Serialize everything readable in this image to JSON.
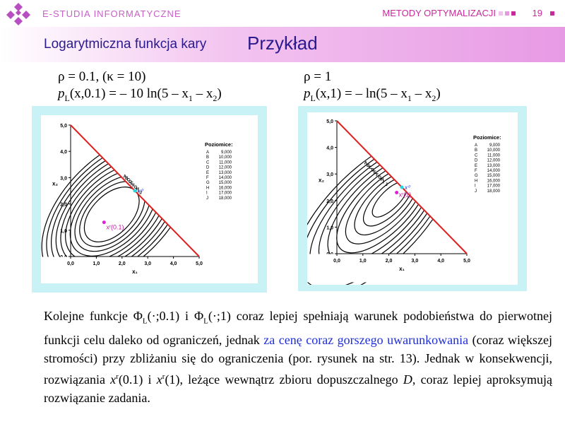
{
  "header": {
    "brand": "E-STUDIA INFORMATYCZNE",
    "course": "METODY OPTYMALIZACJI",
    "page": "19",
    "accent": "#c82a9c"
  },
  "title": {
    "left": "Logarytmiczna funkcja kary",
    "right": "Przykład"
  },
  "left_formula": {
    "line1": "ρ = 0.1, (κ = 10)",
    "line2_p": "p",
    "line2_sub": "L",
    "line2_args": "(x,0.1) = – 10 ln(5 – x",
    "line2_mid": " – x",
    "line2_end": ")"
  },
  "right_formula": {
    "line1": "ρ = 1",
    "line2_p": "p",
    "line2_sub": "L",
    "line2_args": "(x,1) = – ln(5 – x",
    "line2_mid": " – x",
    "line2_end": ")"
  },
  "chart_data": [
    {
      "type": "contour",
      "xlabel": "x₁",
      "ylabel": "x₂",
      "xlim": [
        0,
        5
      ],
      "ylim": [
        0,
        5
      ],
      "xticks": [
        "0,0",
        "1,0",
        "2,0",
        "3,0",
        "4,0",
        "5,0"
      ],
      "yticks": [
        "0,0",
        "1,0",
        "2,0",
        "3,0",
        "4,0",
        "5,0"
      ],
      "constraint": "x1 + x2 = 5",
      "x0_label": "x⁰",
      "x0_point": [
        2.5,
        2.5
      ],
      "xr_label": "xʳ(0.1)",
      "xr_point": [
        1.3,
        1.3
      ],
      "legend_title": "Poziomice:",
      "levels": [
        {
          "id": "A",
          "value": "9,000"
        },
        {
          "id": "B",
          "value": "10,000"
        },
        {
          "id": "C",
          "value": "11,000"
        },
        {
          "id": "D",
          "value": "12,000"
        },
        {
          "id": "E",
          "value": "13,000"
        },
        {
          "id": "F",
          "value": "14,000"
        },
        {
          "id": "G",
          "value": "15,000"
        },
        {
          "id": "H",
          "value": "16,000"
        },
        {
          "id": "I",
          "value": "17,000"
        },
        {
          "id": "J",
          "value": "18,000"
        }
      ]
    },
    {
      "type": "contour",
      "xlabel": "x₁",
      "ylabel": "x₂",
      "xlim": [
        0,
        5
      ],
      "ylim": [
        0,
        5
      ],
      "xticks": [
        "0,0",
        "1,0",
        "2,0",
        "3,0",
        "4,0",
        "5,0"
      ],
      "yticks": [
        "0,0",
        "1,0",
        "2,0",
        "3,0",
        "4,0",
        "5,0"
      ],
      "constraint": "x1 + x2 = 5",
      "x0_label": "x⁰",
      "x0_point": [
        2.5,
        2.5
      ],
      "xr_label": "xʳ(1)",
      "xr_point": [
        2.3,
        2.3
      ],
      "legend_title": "Poziomice:",
      "levels": [
        {
          "id": "A",
          "value": "9,000"
        },
        {
          "id": "B",
          "value": "10,000"
        },
        {
          "id": "C",
          "value": "11,000"
        },
        {
          "id": "D",
          "value": "12,000"
        },
        {
          "id": "E",
          "value": "13,000"
        },
        {
          "id": "F",
          "value": "14,000"
        },
        {
          "id": "G",
          "value": "15,000"
        },
        {
          "id": "H",
          "value": "16,000"
        },
        {
          "id": "I",
          "value": "17,000"
        },
        {
          "id": "J",
          "value": "18,000"
        }
      ]
    }
  ],
  "paragraph": {
    "p1": "Kolejne funkcje Φ",
    "p1b": "(·;0.1) i Φ",
    "p1c": "(·;1) coraz lepiej spełniają warunek podobieństwa do pierwotnej funkcji celu daleko od ograniczeń, jednak ",
    "blue": "za cenę coraz gorszego uwarunkowania",
    "p2": " (coraz większej stromości) przy zbliżaniu się do ograniczenia (por. rysunek na str. 13). Jednak w konsekwencji, rozwiązania ",
    "xr1": "x",
    "r": "r",
    "p3": "(0.1) i ",
    "p4": "(1), leżące wewnątrz zbioru dopuszczalnego ",
    "D": "D",
    "p5": ", coraz lepiej aproksymują rozwiązanie zadania."
  }
}
